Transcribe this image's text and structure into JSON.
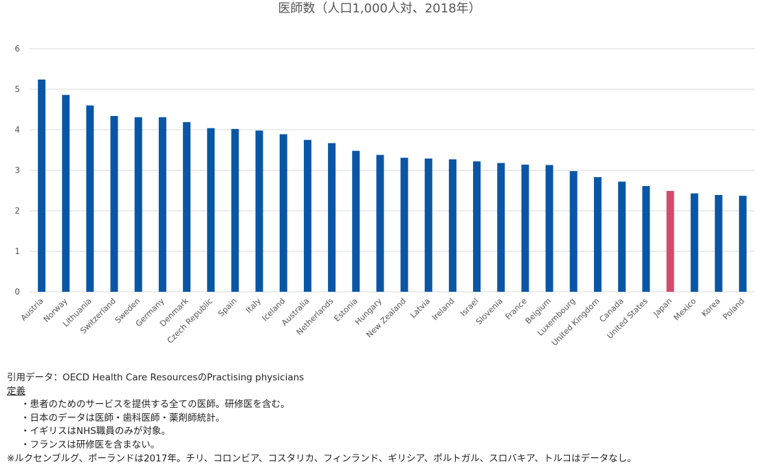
{
  "chart_data": {
    "type": "bar",
    "title": "医師数（人口1,000人対、2018年）",
    "ylim": [
      0,
      6
    ],
    "yticks": [
      0,
      1,
      2,
      3,
      4,
      5,
      6
    ],
    "grid": true,
    "highlight_category": "Japan",
    "colors": {
      "bar": "#0a56a6",
      "highlight": "#d44a6a",
      "grid": "#d9d9d9"
    },
    "categories": [
      "Austria",
      "Norway",
      "Lithuania",
      "Switzerland",
      "Sweden",
      "Germany",
      "Denmark",
      "Czech Republic",
      "Spain",
      "Italy",
      "Iceland",
      "Australia",
      "Netherlands",
      "Estonia",
      "Hungary",
      "New Zealand",
      "Latvia",
      "Ireland",
      "Israel",
      "Slovenia",
      "France",
      "Belgium",
      "Luxembourg",
      "United Kingdom",
      "Canada",
      "United States",
      "Japan",
      "Mexico",
      "Korea",
      "Poland"
    ],
    "values": [
      5.24,
      4.86,
      4.6,
      4.34,
      4.31,
      4.31,
      4.19,
      4.04,
      4.02,
      3.98,
      3.89,
      3.75,
      3.67,
      3.48,
      3.38,
      3.31,
      3.29,
      3.27,
      3.22,
      3.18,
      3.14,
      3.13,
      2.98,
      2.83,
      2.72,
      2.61,
      2.49,
      2.43,
      2.39,
      2.37
    ]
  },
  "notes": {
    "source": "引用データ：OECD Health Care ResourcesのPractising physicians",
    "definition_label": "定義",
    "items": [
      "・患者のためのサービスを提供する全ての医師。研修医を含む。",
      "・日本のデータは医師・歯科医師・薬剤師統計。",
      "・イギリスはNHS職員のみが対象。",
      "・フランスは研修医を含まない。"
    ],
    "footnote": "※ルクセンブルグ、ポーランドは2017年。チリ、コロンビア、コスタリカ、フィンランド、ギリシア、ポルトガル、スロバキア、トルコはデータなし。"
  }
}
